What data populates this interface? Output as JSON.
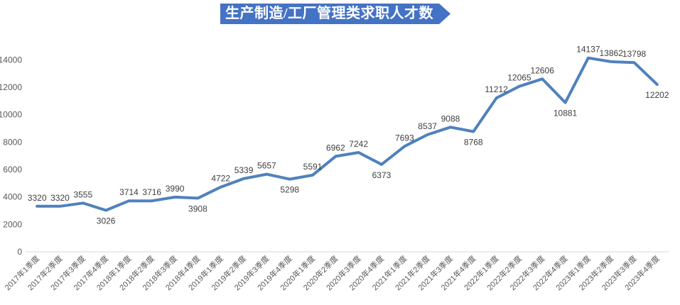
{
  "title": {
    "text": "生产制造/工厂管理类求职人才数"
  },
  "colors": {
    "banner_bg": "#4472C4",
    "banner_text": "#FFFFFF",
    "line": "#4F81BD",
    "data_label": "#404040",
    "axis_label": "#595959",
    "axis_line": "#D9D9D9",
    "background": "#FFFFFF"
  },
  "chart_data": {
    "type": "line",
    "title": "生产制造/工厂管理类求职人才数",
    "categories": [
      "2017年1季度",
      "2017年2季度",
      "2017年3季度",
      "2017年4季度",
      "2018年1季度",
      "2018年2季度",
      "2018年3季度",
      "2018年4季度",
      "2019年1季度",
      "2019年2季度",
      "2019年3季度",
      "2019年4季度",
      "2020年1季度",
      "2020年2季度",
      "2020年3季度",
      "2020年4季度",
      "2021年1季度",
      "2021年2季度",
      "2021年3季度",
      "2021年4季度",
      "2022年1季度",
      "2022年2季度",
      "2022年3季度",
      "2022年4季度",
      "2023年1季度",
      "2023年2季度",
      "2023年3季度",
      "2023年4季度"
    ],
    "values": [
      3320,
      3320,
      3555,
      3026,
      3714,
      3716,
      3990,
      3908,
      4722,
      5339,
      5657,
      5298,
      5591,
      6962,
      7242,
      6373,
      7693,
      8537,
      9088,
      8768,
      11212,
      12065,
      12606,
      10881,
      14137,
      13862,
      13798,
      12202
    ],
    "xlabel": "",
    "ylabel": "",
    "ylim": [
      0,
      14000
    ],
    "y_ticks": [
      0,
      2000,
      4000,
      6000,
      8000,
      10000,
      12000,
      14000
    ],
    "grid": false,
    "legend": "none",
    "data_labels": true,
    "label_below_indices": [
      3,
      7,
      11,
      15,
      19,
      23,
      27
    ]
  }
}
